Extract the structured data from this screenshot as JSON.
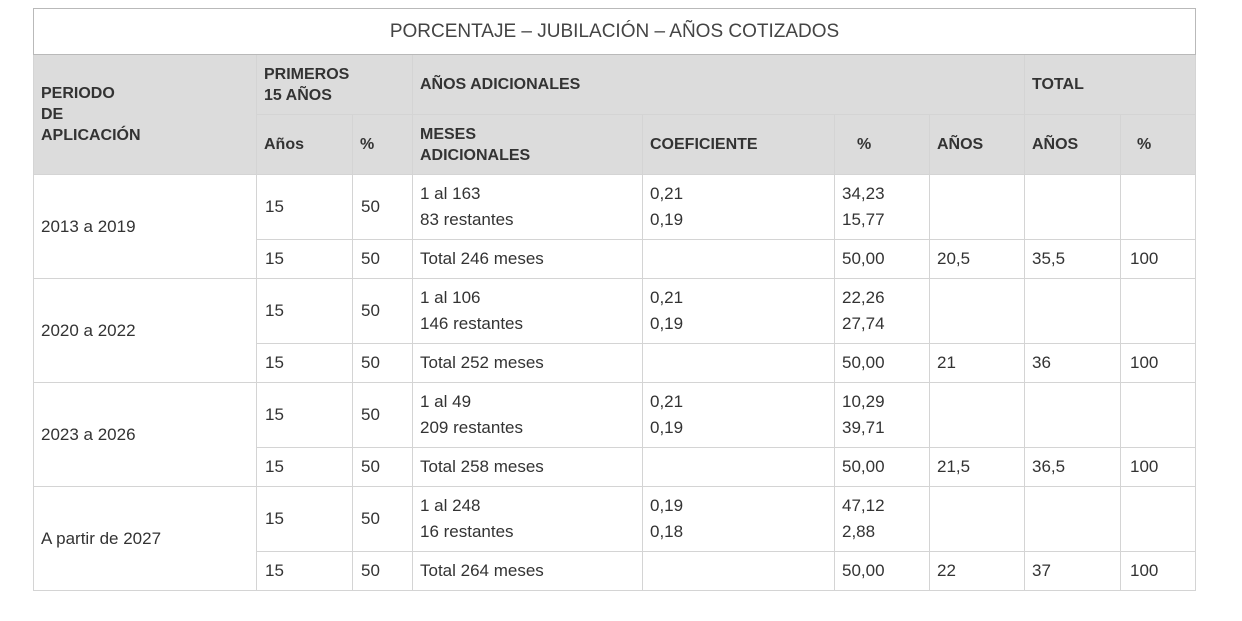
{
  "title": "PORCENTAJE – JUBILACIÓN – AÑOS COTIZADOS",
  "headers": {
    "periodo": "PERIODO DE APLICACIÓN",
    "primeros_line1": "PRIMEROS",
    "primeros_line2": "15 AÑOS",
    "adicionales": "AÑOS ADICIONALES",
    "total": "TOTAL",
    "anos": "Años",
    "pct": "%",
    "meses_line1": "MESES",
    "meses_line2": "ADICIONALES",
    "coeficiente": "COEFICIENTE",
    "pct2": "%",
    "anos2": "AÑOS",
    "total_anos": "AÑOS",
    "total_pct": "%"
  },
  "rows": [
    {
      "periodo": "2013 a 2019",
      "sub": [
        {
          "anos": "15",
          "pct": "50",
          "meses_1": "1 al 163",
          "meses_2": "83 restantes",
          "coef_1": "0,21",
          "coef_2": "0,19",
          "pct_1": "34,23",
          "pct_2": "15,77"
        },
        {
          "anos": "15",
          "pct": "50",
          "meses": "Total 246 meses",
          "pct_total": "50,00",
          "anos_adic": "20,5",
          "total_anos": "35,5",
          "total_pct": "100"
        }
      ]
    },
    {
      "periodo": "2020 a 2022",
      "sub": [
        {
          "anos": "15",
          "pct": "50",
          "meses_1": "1 al 106",
          "meses_2": "146 restantes",
          "coef_1": "0,21",
          "coef_2": "0,19",
          "pct_1": "22,26",
          "pct_2": "27,74"
        },
        {
          "anos": "15",
          "pct": "50",
          "meses": "Total 252 meses",
          "pct_total": "50,00",
          "anos_adic": "21",
          "total_anos": "36",
          "total_pct": "100"
        }
      ]
    },
    {
      "periodo": "2023 a 2026",
      "sub": [
        {
          "anos": "15",
          "pct": "50",
          "meses_1": "1 al 49",
          "meses_2": "209 restantes",
          "coef_1": "0,21",
          "coef_2": "0,19",
          "pct_1": "10,29",
          "pct_2": "39,71"
        },
        {
          "anos": "15",
          "pct": "50",
          "meses": "Total 258 meses",
          "pct_total": "50,00",
          "anos_adic": "21,5",
          "total_anos": "36,5",
          "total_pct": "100"
        }
      ]
    },
    {
      "periodo": "A partir de 2027",
      "sub": [
        {
          "anos": "15",
          "pct": "50",
          "meses_1": "1 al 248",
          "meses_2": "16 restantes",
          "coef_1": "0,19",
          "coef_2": "0,18",
          "pct_1": "47,12",
          "pct_2": "2,88"
        },
        {
          "anos": "15",
          "pct": "50",
          "meses": "Total 264 meses",
          "pct_total": "50,00",
          "anos_adic": "22",
          "total_anos": "37",
          "total_pct": "100"
        }
      ]
    }
  ]
}
